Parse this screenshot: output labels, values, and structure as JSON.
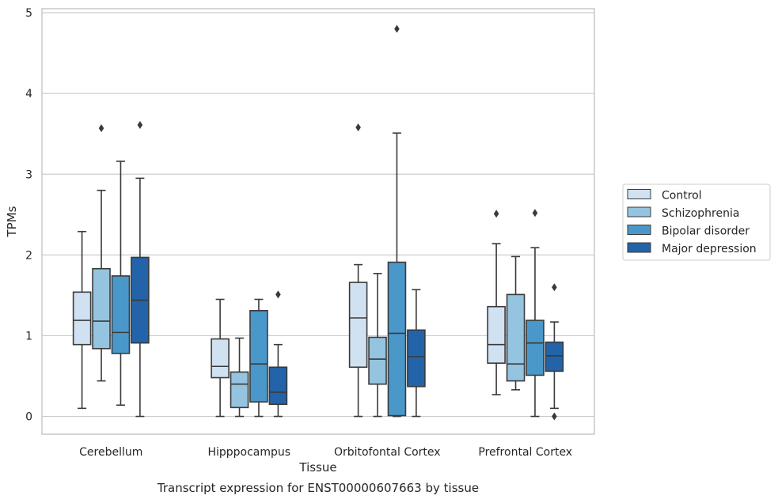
{
  "chart_data": {
    "type": "box",
    "xlabel": "Tissue",
    "ylabel": "TPMs",
    "caption": "Transcript expression for ENST00000607663 by tissue",
    "ylim": [
      -0.22,
      5.05
    ],
    "yticks": [
      0,
      1,
      2,
      3,
      4,
      5
    ],
    "grid": "horizontal",
    "legend_position": "right",
    "categories": [
      "Cerebellum",
      "Hipppocampus",
      "Orbitofontal Cortex",
      "Prefrontal Cortex"
    ],
    "series": [
      {
        "name": "Control",
        "color": "#d0e1f2",
        "boxes": [
          {
            "whisker_low": 0.1,
            "q1": 0.89,
            "median": 1.19,
            "q3": 1.54,
            "whisker_high": 2.29,
            "outliers": []
          },
          {
            "whisker_low": 0.0,
            "q1": 0.48,
            "median": 0.62,
            "q3": 0.96,
            "whisker_high": 1.45,
            "outliers": []
          },
          {
            "whisker_low": 0.0,
            "q1": 0.61,
            "median": 1.22,
            "q3": 1.66,
            "whisker_high": 1.88,
            "outliers": [
              3.58
            ]
          },
          {
            "whisker_low": 0.27,
            "q1": 0.66,
            "median": 0.89,
            "q3": 1.36,
            "whisker_high": 2.14,
            "outliers": [
              2.51
            ]
          }
        ]
      },
      {
        "name": "Schizophrenia",
        "color": "#94c4df",
        "boxes": [
          {
            "whisker_low": 0.44,
            "q1": 0.84,
            "median": 1.18,
            "q3": 1.83,
            "whisker_high": 2.8,
            "outliers": [
              3.57
            ]
          },
          {
            "whisker_low": 0.0,
            "q1": 0.11,
            "median": 0.4,
            "q3": 0.55,
            "whisker_high": 0.97,
            "outliers": []
          },
          {
            "whisker_low": 0.0,
            "q1": 0.4,
            "median": 0.71,
            "q3": 0.98,
            "whisker_high": 1.77,
            "outliers": []
          },
          {
            "whisker_low": 0.33,
            "q1": 0.44,
            "median": 0.65,
            "q3": 1.51,
            "whisker_high": 1.98,
            "outliers": []
          }
        ]
      },
      {
        "name": "Bipolar disorder",
        "color": "#4a98c9",
        "boxes": [
          {
            "whisker_low": 0.14,
            "q1": 0.78,
            "median": 1.04,
            "q3": 1.74,
            "whisker_high": 3.16,
            "outliers": []
          },
          {
            "whisker_low": 0.0,
            "q1": 0.18,
            "median": 0.65,
            "q3": 1.31,
            "whisker_high": 1.45,
            "outliers": []
          },
          {
            "whisker_low": 0.0,
            "q1": 0.01,
            "median": 1.03,
            "q3": 1.91,
            "whisker_high": 3.51,
            "outliers": [
              4.8
            ]
          },
          {
            "whisker_low": 0.0,
            "q1": 0.51,
            "median": 0.91,
            "q3": 1.19,
            "whisker_high": 2.09,
            "outliers": [
              2.52
            ]
          }
        ]
      },
      {
        "name": "Major depression",
        "color": "#2363a9",
        "boxes": [
          {
            "whisker_low": 0.0,
            "q1": 0.91,
            "median": 1.44,
            "q3": 1.97,
            "whisker_high": 2.95,
            "outliers": [
              3.61
            ]
          },
          {
            "whisker_low": 0.0,
            "q1": 0.15,
            "median": 0.3,
            "q3": 0.61,
            "whisker_high": 0.89,
            "outliers": [
              1.51
            ]
          },
          {
            "whisker_low": 0.0,
            "q1": 0.37,
            "median": 0.74,
            "q3": 1.07,
            "whisker_high": 1.57,
            "outliers": []
          },
          {
            "whisker_low": 0.1,
            "q1": 0.56,
            "median": 0.75,
            "q3": 0.92,
            "whisker_high": 1.17,
            "outliers": [
              1.6,
              0.0
            ]
          }
        ]
      }
    ]
  }
}
